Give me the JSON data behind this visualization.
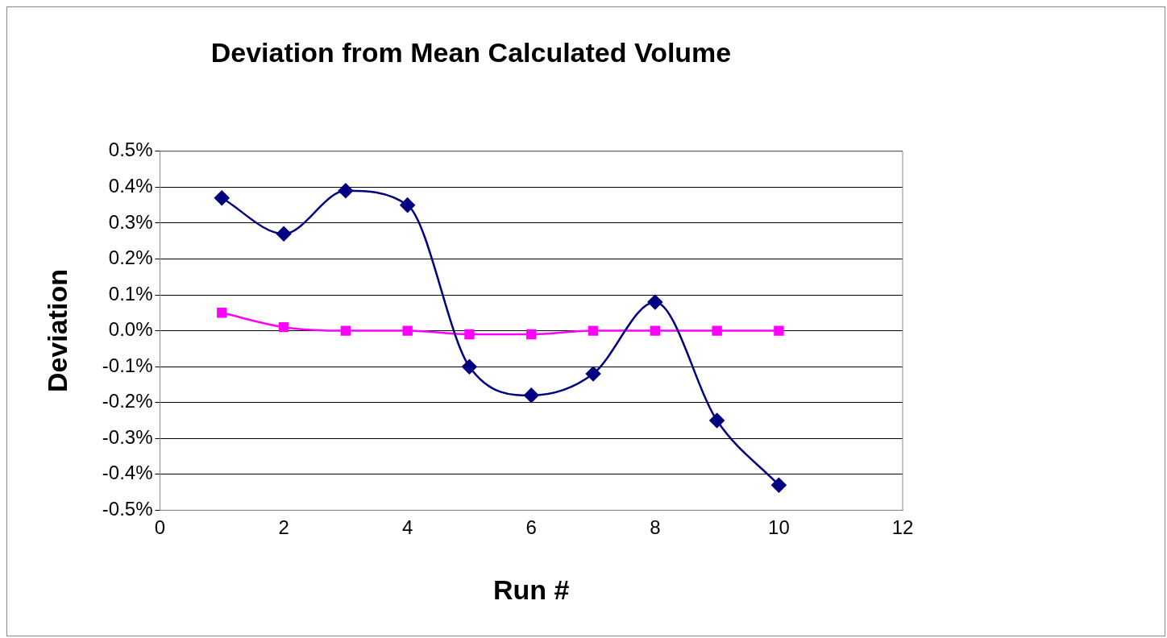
{
  "chart_data": {
    "type": "line",
    "title": "Deviation from Mean Calculated Volume",
    "xlabel": "Run #",
    "ylabel": "Deviation",
    "x": [
      1,
      2,
      3,
      4,
      5,
      6,
      7,
      8,
      9,
      10
    ],
    "series": [
      {
        "color": "#000080",
        "marker": "diamond",
        "values": [
          0.37,
          0.27,
          0.39,
          0.35,
          -0.1,
          -0.18,
          -0.12,
          0.08,
          -0.25,
          -0.43
        ]
      },
      {
        "color": "#ff00ff",
        "marker": "square",
        "values": [
          0.05,
          0.01,
          0,
          0,
          -0.01,
          -0.01,
          0,
          0,
          0,
          0
        ]
      }
    ],
    "xlim": [
      0,
      12
    ],
    "xticks": [
      0,
      2,
      4,
      6,
      8,
      10,
      12
    ],
    "ylim": [
      -0.5,
      0.5
    ],
    "yticks": [
      {
        "value": -0.5,
        "label": "-0.5%"
      },
      {
        "value": -0.4,
        "label": "-0.4%"
      },
      {
        "value": -0.3,
        "label": "-0.3%"
      },
      {
        "value": -0.2,
        "label": "-0.2%"
      },
      {
        "value": -0.1,
        "label": "-0.1%"
      },
      {
        "value": 0,
        "label": "0.0%"
      },
      {
        "value": 0.1,
        "label": "0.1%"
      },
      {
        "value": 0.2,
        "label": "0.2%"
      },
      {
        "value": 0.3,
        "label": "0.3%"
      },
      {
        "value": 0.4,
        "label": "0.4%"
      },
      {
        "value": 0.5,
        "label": "0.5%"
      }
    ],
    "grid": "y",
    "legend": false,
    "line_style": "solid"
  }
}
